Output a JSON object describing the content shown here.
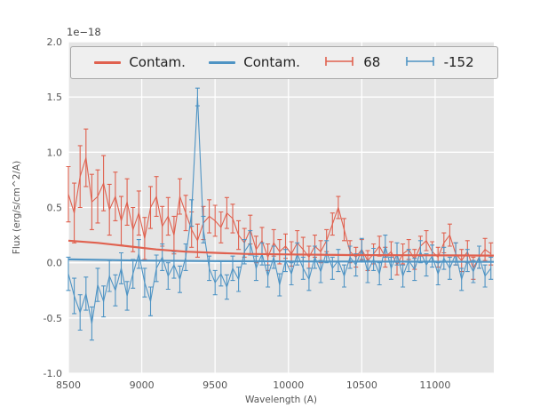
{
  "figure": {
    "offset_label": "1e−18",
    "background_color": "#ffffff",
    "axes_background": "#e5e5e5",
    "grid_color": "#ffffff",
    "tick_color": "#555555"
  },
  "chart_data": {
    "type": "line",
    "title": "",
    "xlabel": "Wavelength (A)",
    "ylabel": "Flux (erg/s/cm^2/A)",
    "y_offset_factor": "1e−18",
    "xlim": [
      8500,
      11400
    ],
    "ylim": [
      -1.0,
      2.0
    ],
    "grid": true,
    "legend_position": "top-horizontal",
    "xticks": [
      8500,
      9000,
      9500,
      10000,
      10500,
      11000
    ],
    "xtick_labels": [
      "8500",
      "9000",
      "9500",
      "10000",
      "10500",
      "11000"
    ],
    "yticks": [
      -1.0,
      -0.5,
      0.0,
      0.5,
      1.0,
      1.5,
      2.0
    ],
    "ytick_labels": [
      "-1.0",
      "-0.5",
      "0.0",
      "0.5",
      "1.0",
      "1.5",
      "2.0"
    ],
    "series": [
      {
        "name": "Contam.",
        "type": "line",
        "color": "#e0614f",
        "x": [
          8500,
          8700,
          8900,
          9100,
          9300,
          9500,
          9700,
          10000,
          10400,
          10800,
          11400
        ],
        "y": [
          0.2,
          0.18,
          0.15,
          0.12,
          0.1,
          0.09,
          0.08,
          0.075,
          0.07,
          0.068,
          0.065
        ]
      },
      {
        "name": "Contam.",
        "type": "line",
        "color": "#4f94c4",
        "x": [
          8500,
          9000,
          9500,
          10000,
          10500,
          11000,
          11400
        ],
        "y": [
          0.03,
          0.02,
          0.015,
          0.012,
          0.01,
          0.009,
          0.008
        ]
      },
      {
        "name": "68",
        "type": "errorbar",
        "color": "#e0614f",
        "x": [
          8500,
          8540,
          8580,
          8620,
          8660,
          8700,
          8740,
          8780,
          8820,
          8860,
          8900,
          8940,
          8980,
          9020,
          9060,
          9100,
          9140,
          9180,
          9220,
          9260,
          9300,
          9340,
          9380,
          9420,
          9460,
          9500,
          9540,
          9580,
          9620,
          9660,
          9700,
          9740,
          9780,
          9820,
          9860,
          9900,
          9940,
          9980,
          10020,
          10060,
          10100,
          10140,
          10180,
          10220,
          10260,
          10300,
          10340,
          10380,
          10420,
          10460,
          10500,
          10540,
          10580,
          10620,
          10660,
          10700,
          10740,
          10780,
          10820,
          10860,
          10900,
          10940,
          10980,
          11020,
          11060,
          11100,
          11140,
          11180,
          11220,
          11260,
          11300,
          11340,
          11380
        ],
        "y": [
          0.62,
          0.45,
          0.78,
          0.95,
          0.55,
          0.6,
          0.72,
          0.48,
          0.6,
          0.38,
          0.55,
          0.3,
          0.45,
          0.22,
          0.5,
          0.6,
          0.33,
          0.42,
          0.25,
          0.6,
          0.45,
          0.3,
          0.2,
          0.36,
          0.42,
          0.38,
          0.32,
          0.45,
          0.4,
          0.25,
          0.18,
          0.3,
          0.12,
          0.2,
          0.05,
          0.18,
          0.1,
          0.15,
          0.08,
          0.18,
          0.12,
          0.05,
          0.15,
          0.1,
          0.2,
          0.35,
          0.5,
          0.3,
          0.1,
          0.05,
          0.12,
          0.02,
          0.08,
          0.15,
          0.05,
          0.1,
          -0.02,
          0.08,
          0.12,
          0.03,
          0.15,
          0.2,
          0.1,
          0.05,
          0.18,
          0.25,
          0.08,
          0.02,
          0.1,
          -0.05,
          0.05,
          0.12,
          0.08
        ],
        "yerr": [
          0.25,
          0.27,
          0.28,
          0.26,
          0.25,
          0.24,
          0.25,
          0.23,
          0.22,
          0.22,
          0.21,
          0.2,
          0.2,
          0.19,
          0.19,
          0.18,
          0.18,
          0.17,
          0.17,
          0.16,
          0.16,
          0.16,
          0.15,
          0.15,
          0.15,
          0.14,
          0.14,
          0.14,
          0.13,
          0.13,
          0.13,
          0.13,
          0.12,
          0.12,
          0.12,
          0.12,
          0.11,
          0.11,
          0.11,
          0.11,
          0.11,
          0.1,
          0.1,
          0.1,
          0.1,
          0.1,
          0.1,
          0.1,
          0.1,
          0.09,
          0.09,
          0.09,
          0.09,
          0.09,
          0.09,
          0.09,
          0.09,
          0.09,
          0.09,
          0.09,
          0.09,
          0.09,
          0.09,
          0.09,
          0.09,
          0.1,
          0.1,
          0.1,
          0.1,
          0.1,
          0.1,
          0.1,
          0.1
        ]
      },
      {
        "name": "-152",
        "type": "errorbar",
        "color": "#4f94c4",
        "x": [
          8500,
          8540,
          8580,
          8620,
          8660,
          8700,
          8740,
          8780,
          8820,
          8860,
          8900,
          8940,
          8980,
          9020,
          9060,
          9100,
          9140,
          9180,
          9220,
          9260,
          9300,
          9340,
          9380,
          9420,
          9460,
          9500,
          9540,
          9580,
          9620,
          9660,
          9700,
          9740,
          9780,
          9820,
          9860,
          9900,
          9940,
          9980,
          10020,
          10060,
          10100,
          10140,
          10180,
          10220,
          10260,
          10300,
          10340,
          10380,
          10420,
          10460,
          10500,
          10540,
          10580,
          10620,
          10660,
          10700,
          10740,
          10780,
          10820,
          10860,
          10900,
          10940,
          10980,
          11020,
          11060,
          11100,
          11140,
          11180,
          11220,
          11260,
          11300,
          11340,
          11380
        ],
        "y": [
          -0.1,
          -0.3,
          -0.45,
          -0.28,
          -0.55,
          -0.2,
          -0.35,
          -0.12,
          -0.25,
          -0.05,
          -0.3,
          -0.1,
          0.08,
          -0.18,
          -0.35,
          -0.05,
          0.05,
          -0.12,
          -0.02,
          -0.15,
          0.05,
          0.45,
          1.5,
          0.3,
          -0.05,
          -0.18,
          -0.1,
          -0.22,
          -0.05,
          -0.15,
          0.1,
          0.18,
          -0.05,
          0.08,
          -0.12,
          0.05,
          -0.2,
          0.02,
          -0.1,
          0.08,
          -0.05,
          -0.15,
          0.05,
          -0.08,
          0.1,
          -0.05,
          0.02,
          -0.12,
          0.05,
          -0.02,
          0.12,
          -0.08,
          0.03,
          -0.1,
          0.15,
          -0.05,
          0.08,
          -0.12,
          0.02,
          -0.06,
          0.1,
          -0.02,
          0.06,
          -0.1,
          0.04,
          -0.05,
          0.08,
          -0.15,
          0.02,
          -0.08,
          0.05,
          -0.12,
          -0.05
        ],
        "yerr": [
          0.15,
          0.16,
          0.16,
          0.15,
          0.15,
          0.15,
          0.14,
          0.14,
          0.14,
          0.14,
          0.13,
          0.13,
          0.13,
          0.13,
          0.13,
          0.12,
          0.12,
          0.12,
          0.12,
          0.12,
          0.12,
          0.12,
          0.08,
          0.12,
          0.11,
          0.11,
          0.11,
          0.11,
          0.11,
          0.11,
          0.11,
          0.11,
          0.11,
          0.1,
          0.1,
          0.1,
          0.1,
          0.1,
          0.1,
          0.1,
          0.1,
          0.1,
          0.1,
          0.1,
          0.1,
          0.1,
          0.1,
          0.1,
          0.1,
          0.1,
          0.1,
          0.1,
          0.1,
          0.1,
          0.1,
          0.1,
          0.1,
          0.1,
          0.1,
          0.1,
          0.1,
          0.1,
          0.1,
          0.1,
          0.1,
          0.1,
          0.1,
          0.1,
          0.1,
          0.1,
          0.1,
          0.1,
          0.1
        ]
      }
    ]
  }
}
